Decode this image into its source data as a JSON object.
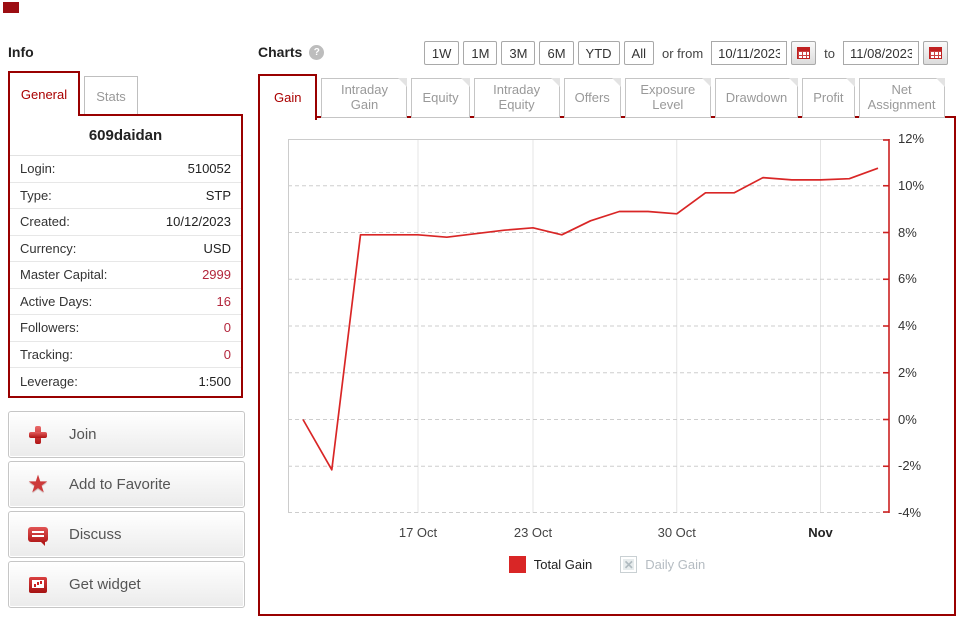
{
  "info": {
    "title": "Info",
    "tabs": [
      {
        "label": "General",
        "active": true
      },
      {
        "label": "Stats",
        "active": false
      }
    ],
    "account_name": "609daidan",
    "rows": [
      {
        "label": "Login:",
        "value": "510052",
        "tone": "dark"
      },
      {
        "label": "Type:",
        "value": "STP",
        "tone": "dark"
      },
      {
        "label": "Created:",
        "value": "10/12/2023",
        "tone": "dark"
      },
      {
        "label": "Currency:",
        "value": "USD",
        "tone": "dark"
      },
      {
        "label": "Master Capital:",
        "value": "2999",
        "tone": "red"
      },
      {
        "label": "Active Days:",
        "value": "16",
        "tone": "red"
      },
      {
        "label": "Followers:",
        "value": "0",
        "tone": "red"
      },
      {
        "label": "Tracking:",
        "value": "0",
        "tone": "red"
      },
      {
        "label": "Leverage:",
        "value": "1:500",
        "tone": "dark"
      }
    ],
    "actions": [
      {
        "label": "Join",
        "icon": "plus-icon",
        "icon_class": "icon-plus"
      },
      {
        "label": "Add to Favorite",
        "icon": "star-icon",
        "icon_class": "icon-star",
        "glyph": "★"
      },
      {
        "label": "Discuss",
        "icon": "discuss-icon",
        "icon_class": "icon-discuss"
      },
      {
        "label": "Get widget",
        "icon": "widget-icon",
        "icon_class": "icon-widget"
      }
    ]
  },
  "charts": {
    "title": "Charts",
    "help_glyph": "?",
    "range_buttons": [
      "1W",
      "1M",
      "3M",
      "6M",
      "YTD",
      "All"
    ],
    "or_from_label": "or from",
    "to_label": "to",
    "date_from": "10/11/2023",
    "date_to": "11/08/2023",
    "tabs": [
      {
        "label": "Gain",
        "active": true
      },
      {
        "label": "Intraday Gain",
        "active": false
      },
      {
        "label": "Equity",
        "active": false
      },
      {
        "label": "Intraday Equity",
        "active": false
      },
      {
        "label": "Offers",
        "active": false
      },
      {
        "label": "Exposure Level",
        "active": false
      },
      {
        "label": "Drawdown",
        "active": false
      },
      {
        "label": "Profit",
        "active": false
      },
      {
        "label": "Net Assignment",
        "active": false
      }
    ]
  },
  "chart_data": {
    "type": "line",
    "title": "Gain",
    "series": [
      {
        "name": "Total Gain",
        "color": "#d92626",
        "values": [
          0,
          -2.15,
          7.9,
          7.9,
          7.9,
          7.8,
          7.95,
          8.1,
          8.2,
          7.9,
          8.5,
          8.9,
          8.9,
          8.8,
          9.7,
          9.7,
          10.35,
          10.25,
          10.25,
          10.3,
          10.75
        ]
      }
    ],
    "x_ticks": [
      {
        "label": "17 Oct",
        "index": 4,
        "bold": false
      },
      {
        "label": "23 Oct",
        "index": 8,
        "bold": false
      },
      {
        "label": "30 Oct",
        "index": 13,
        "bold": false
      },
      {
        "label": "Nov",
        "index": 18,
        "bold": true
      }
    ],
    "y_ticks": [
      "12%",
      "10%",
      "8%",
      "6%",
      "4%",
      "2%",
      "0%",
      "-2%",
      "-4%"
    ],
    "ylim": [
      -4,
      12
    ],
    "y_step": 2,
    "grid": true,
    "axis_color": "#cc2222",
    "legend_position": "bottom",
    "legend": [
      {
        "label": "Total Gain",
        "disabled": false,
        "color": "#d92626"
      },
      {
        "label": "Daily Gain",
        "disabled": true
      }
    ],
    "date_range": [
      "10/11/2023",
      "11/08/2023"
    ]
  }
}
